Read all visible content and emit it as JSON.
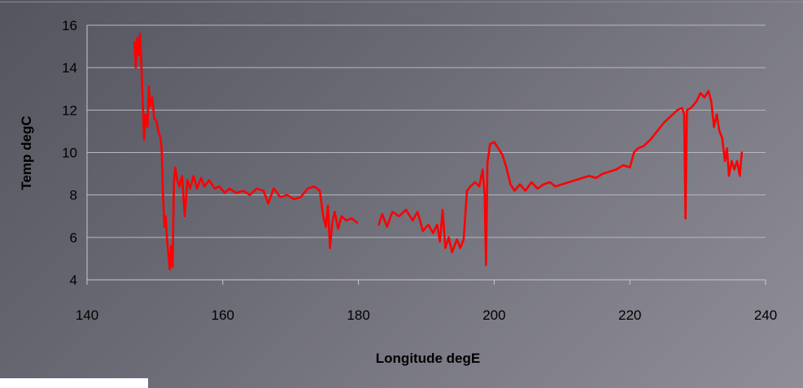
{
  "chart_data": {
    "type": "line",
    "title": "",
    "xlabel": "Longitude degE",
    "ylabel": "Temp degC",
    "xlim": [
      140,
      240
    ],
    "ylim": [
      4,
      16
    ],
    "xticks": [
      140,
      160,
      180,
      200,
      220,
      240
    ],
    "yticks": [
      4,
      6,
      8,
      10,
      12,
      14,
      16
    ],
    "grid": {
      "horizontal": true,
      "vertical": false
    },
    "legend": "none",
    "series": [
      {
        "color": "#ff0000",
        "segments": [
          [
            [
              147.0,
              15.2
            ],
            [
              147.2,
              14.0
            ],
            [
              147.4,
              15.4
            ],
            [
              147.6,
              14.6
            ],
            [
              147.8,
              15.6
            ],
            [
              148.0,
              14.2
            ],
            [
              148.2,
              12.5
            ],
            [
              148.4,
              10.6
            ],
            [
              148.6,
              11.8
            ],
            [
              148.9,
              11.2
            ],
            [
              149.1,
              13.1
            ],
            [
              149.3,
              12.2
            ],
            [
              149.6,
              12.6
            ],
            [
              149.9,
              11.6
            ],
            [
              150.2,
              11.5
            ],
            [
              150.5,
              11.0
            ],
            [
              150.8,
              10.7
            ],
            [
              151.0,
              10.2
            ],
            [
              151.2,
              8.0
            ],
            [
              151.4,
              6.5
            ],
            [
              151.6,
              7.0
            ],
            [
              151.8,
              5.8
            ],
            [
              152.0,
              5.2
            ],
            [
              152.2,
              4.5
            ],
            [
              152.4,
              5.6
            ],
            [
              152.6,
              4.6
            ],
            [
              152.8,
              8.6
            ],
            [
              153.0,
              9.3
            ],
            [
              153.3,
              8.7
            ],
            [
              153.6,
              8.4
            ],
            [
              154.0,
              8.9
            ],
            [
              154.4,
              7.0
            ],
            [
              154.8,
              8.7
            ],
            [
              155.2,
              8.3
            ],
            [
              155.7,
              8.9
            ],
            [
              156.2,
              8.3
            ],
            [
              156.8,
              8.8
            ],
            [
              157.3,
              8.4
            ],
            [
              158.0,
              8.7
            ],
            [
              158.8,
              8.3
            ],
            [
              159.5,
              8.4
            ],
            [
              160.3,
              8.1
            ],
            [
              161.0,
              8.3
            ],
            [
              162.0,
              8.1
            ],
            [
              163.0,
              8.2
            ],
            [
              164.0,
              8.0
            ],
            [
              165.0,
              8.3
            ],
            [
              166.0,
              8.2
            ],
            [
              166.7,
              7.6
            ],
            [
              167.5,
              8.3
            ],
            [
              168.5,
              7.9
            ],
            [
              169.5,
              8.0
            ],
            [
              170.5,
              7.8
            ],
            [
              171.5,
              7.9
            ],
            [
              172.5,
              8.3
            ],
            [
              173.5,
              8.4
            ],
            [
              174.3,
              8.2
            ],
            [
              174.8,
              7.0
            ],
            [
              175.2,
              6.5
            ],
            [
              175.5,
              7.5
            ],
            [
              175.8,
              5.5
            ],
            [
              176.0,
              6.2
            ],
            [
              176.2,
              6.8
            ],
            [
              176.5,
              7.2
            ],
            [
              177.0,
              6.4
            ],
            [
              177.5,
              7.0
            ],
            [
              178.2,
              6.8
            ],
            [
              179.0,
              6.9
            ],
            [
              179.8,
              6.7
            ]
          ],
          [
            [
              183.0,
              6.6
            ],
            [
              183.5,
              7.1
            ],
            [
              184.2,
              6.5
            ],
            [
              185.0,
              7.2
            ],
            [
              186.0,
              7.0
            ],
            [
              187.0,
              7.3
            ],
            [
              188.0,
              6.8
            ],
            [
              188.7,
              7.2
            ],
            [
              189.5,
              6.3
            ],
            [
              190.3,
              6.6
            ],
            [
              191.0,
              6.2
            ],
            [
              191.6,
              6.6
            ],
            [
              192.0,
              5.8
            ],
            [
              192.4,
              7.3
            ],
            [
              192.8,
              5.5
            ],
            [
              193.3,
              6.0
            ],
            [
              193.8,
              5.3
            ],
            [
              194.5,
              5.9
            ],
            [
              195.0,
              5.5
            ],
            [
              195.5,
              5.9
            ],
            [
              196.0,
              8.2
            ],
            [
              196.5,
              8.4
            ],
            [
              197.2,
              8.6
            ],
            [
              197.8,
              8.4
            ],
            [
              198.3,
              9.2
            ],
            [
              198.6,
              8.0
            ],
            [
              198.8,
              4.7
            ],
            [
              199.0,
              9.5
            ],
            [
              199.4,
              10.4
            ],
            [
              200.0,
              10.5
            ],
            [
              200.6,
              10.2
            ],
            [
              201.2,
              9.9
            ],
            [
              201.8,
              9.3
            ],
            [
              202.4,
              8.5
            ],
            [
              203.0,
              8.2
            ],
            [
              203.8,
              8.5
            ],
            [
              204.6,
              8.2
            ],
            [
              205.5,
              8.6
            ],
            [
              206.4,
              8.3
            ],
            [
              207.3,
              8.5
            ],
            [
              208.2,
              8.6
            ],
            [
              209.0,
              8.4
            ],
            [
              210.0,
              8.5
            ],
            [
              211.0,
              8.6
            ],
            [
              212.0,
              8.7
            ],
            [
              213.0,
              8.8
            ],
            [
              214.0,
              8.9
            ],
            [
              215.0,
              8.8
            ],
            [
              216.0,
              9.0
            ],
            [
              217.0,
              9.1
            ],
            [
              218.0,
              9.2
            ],
            [
              219.0,
              9.4
            ],
            [
              220.0,
              9.3
            ],
            [
              220.6,
              10.0
            ],
            [
              221.2,
              10.2
            ],
            [
              222.0,
              10.3
            ],
            [
              223.0,
              10.6
            ],
            [
              224.0,
              11.0
            ],
            [
              225.0,
              11.4
            ],
            [
              226.0,
              11.7
            ],
            [
              227.0,
              12.0
            ],
            [
              227.7,
              12.1
            ],
            [
              228.0,
              11.8
            ],
            [
              228.2,
              6.9
            ],
            [
              228.4,
              12.0
            ],
            [
              229.0,
              12.1
            ],
            [
              229.8,
              12.4
            ],
            [
              230.4,
              12.8
            ],
            [
              231.0,
              12.6
            ],
            [
              231.6,
              12.9
            ],
            [
              232.0,
              12.4
            ],
            [
              232.4,
              11.2
            ],
            [
              232.8,
              11.8
            ],
            [
              233.2,
              11.0
            ],
            [
              233.6,
              10.7
            ],
            [
              234.0,
              9.6
            ],
            [
              234.3,
              10.2
            ],
            [
              234.6,
              8.9
            ],
            [
              235.0,
              9.6
            ],
            [
              235.4,
              9.2
            ],
            [
              235.8,
              9.6
            ],
            [
              236.2,
              8.9
            ],
            [
              236.5,
              10.0
            ]
          ]
        ]
      }
    ]
  }
}
